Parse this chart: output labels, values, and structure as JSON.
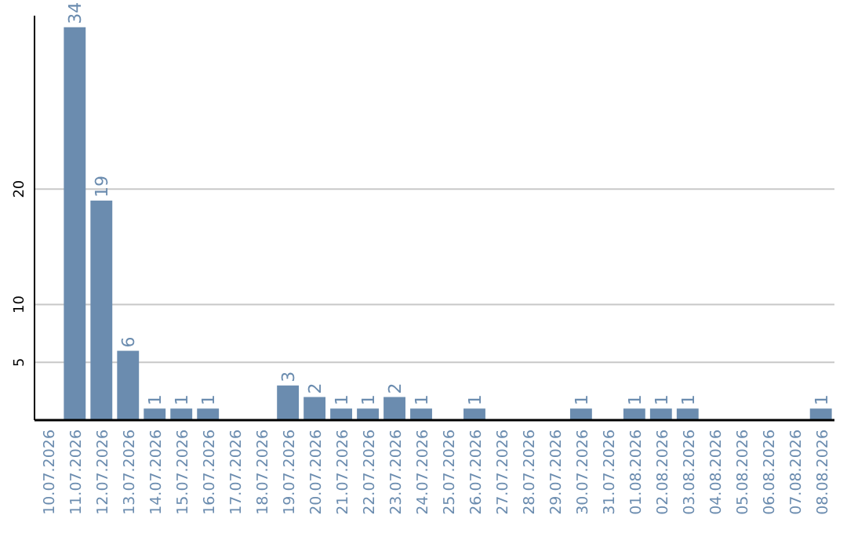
{
  "chart_data": {
    "type": "bar",
    "categories": [
      "10.07.2026",
      "11.07.2026",
      "12.07.2026",
      "13.07.2026",
      "14.07.2026",
      "15.07.2026",
      "16.07.2026",
      "17.07.2026",
      "18.07.2026",
      "19.07.2026",
      "20.07.2026",
      "21.07.2026",
      "22.07.2026",
      "23.07.2026",
      "24.07.2026",
      "25.07.2026",
      "26.07.2026",
      "27.07.2026",
      "28.07.2026",
      "29.07.2026",
      "30.07.2026",
      "31.07.2026",
      "01.08.2026",
      "02.08.2026",
      "03.08.2026",
      "04.08.2026",
      "05.08.2026",
      "06.08.2026",
      "07.08.2026",
      "08.08.2026"
    ],
    "values": [
      null,
      34,
      19,
      6,
      1,
      1,
      1,
      null,
      null,
      3,
      2,
      1,
      1,
      2,
      1,
      null,
      1,
      null,
      null,
      null,
      1,
      null,
      1,
      1,
      1,
      null,
      null,
      null,
      null,
      1
    ],
    "color": "#6b8caf",
    "ylim": [
      0,
      35
    ],
    "yticks": [
      5,
      10,
      20
    ],
    "grid": "y",
    "data_labels": true
  }
}
